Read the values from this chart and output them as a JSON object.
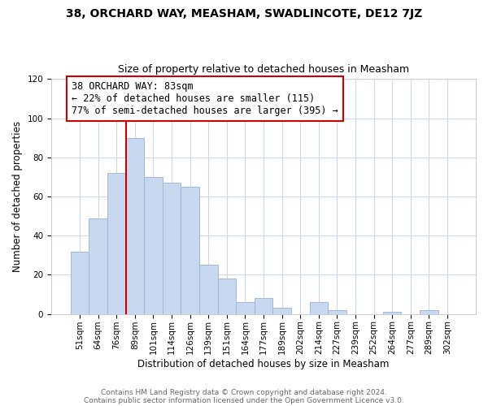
{
  "title": "38, ORCHARD WAY, MEASHAM, SWADLINCOTE, DE12 7JZ",
  "subtitle": "Size of property relative to detached houses in Measham",
  "xlabel": "Distribution of detached houses by size in Measham",
  "ylabel": "Number of detached properties",
  "bar_labels": [
    "51sqm",
    "64sqm",
    "76sqm",
    "89sqm",
    "101sqm",
    "114sqm",
    "126sqm",
    "139sqm",
    "151sqm",
    "164sqm",
    "177sqm",
    "189sqm",
    "202sqm",
    "214sqm",
    "227sqm",
    "239sqm",
    "252sqm",
    "264sqm",
    "277sqm",
    "289sqm",
    "302sqm"
  ],
  "bar_values": [
    32,
    49,
    72,
    90,
    70,
    67,
    65,
    25,
    18,
    6,
    8,
    3,
    0,
    6,
    2,
    0,
    0,
    1,
    0,
    2,
    0
  ],
  "bar_color": "#c8d9ef",
  "bar_edge_color": "#a0b8d8",
  "vline_x": 2.5,
  "vline_color": "#cc0000",
  "annotation_text": "38 ORCHARD WAY: 83sqm\n← 22% of detached houses are smaller (115)\n77% of semi-detached houses are larger (395) →",
  "annotation_box_color": "#ffffff",
  "annotation_box_edge": "#cc0000",
  "ylim": [
    0,
    120
  ],
  "yticks": [
    0,
    20,
    40,
    60,
    80,
    100,
    120
  ],
  "footer_line1": "Contains HM Land Registry data © Crown copyright and database right 2024.",
  "footer_line2": "Contains public sector information licensed under the Open Government Licence v3.0.",
  "bg_color": "#ffffff",
  "grid_color": "#d0d8e8",
  "title_fontsize": 10,
  "subtitle_fontsize": 9,
  "axis_label_fontsize": 8.5,
  "tick_fontsize": 7.5,
  "annotation_fontsize": 8.5,
  "footer_fontsize": 6.5
}
